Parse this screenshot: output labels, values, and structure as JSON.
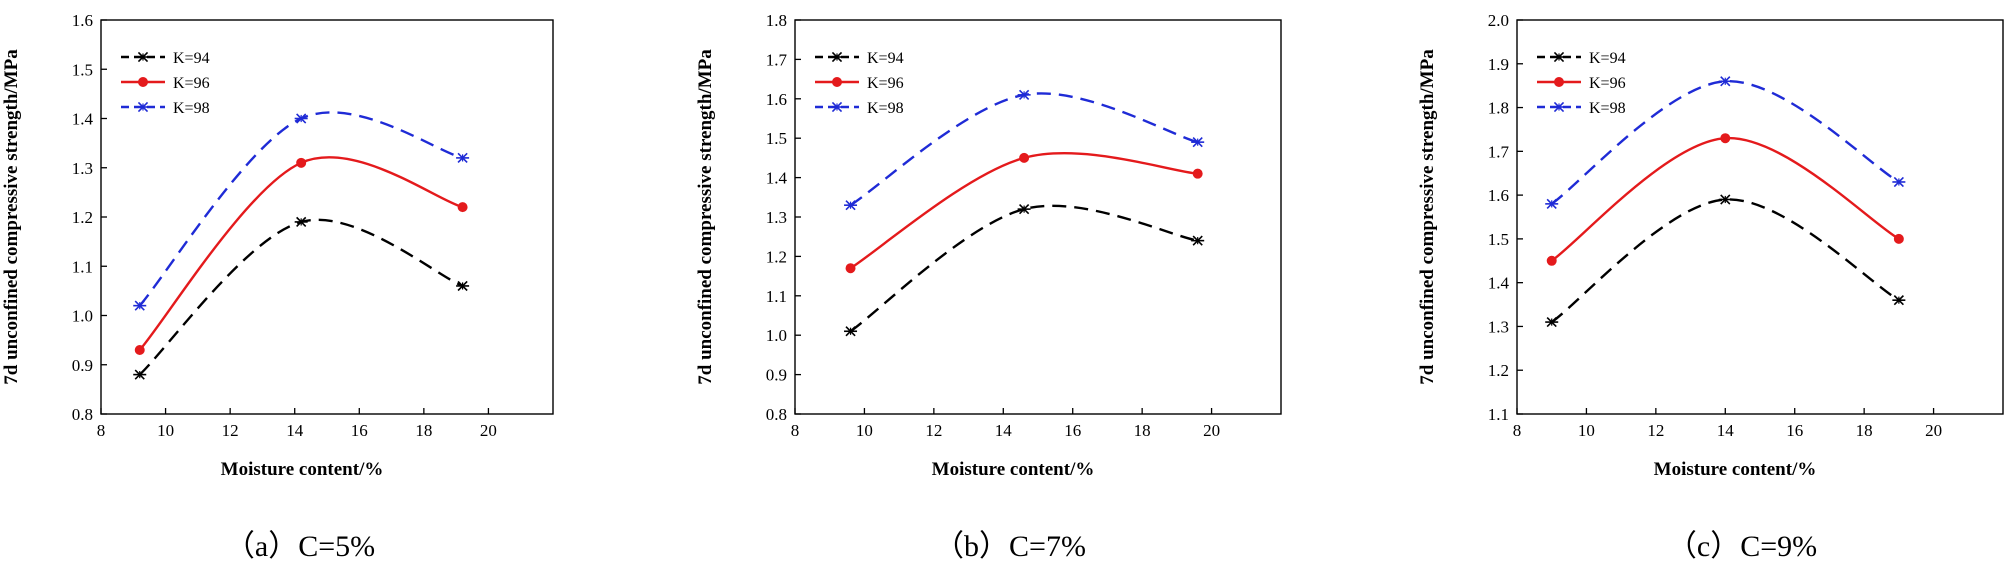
{
  "chart_data": [
    {
      "type": "line",
      "caption": "（a）C=5%",
      "xlabel": "Moisture content/%",
      "ylabel": "7d unconfined compressive strength/MPa",
      "xlim": [
        8,
        22
      ],
      "ylim": [
        0.8,
        1.6
      ],
      "xticks": [
        8,
        10,
        12,
        14,
        16,
        18,
        20
      ],
      "yticks": [
        0.8,
        0.9,
        1.0,
        1.1,
        1.2,
        1.3,
        1.4,
        1.5,
        1.6
      ],
      "x": [
        9.2,
        14.2,
        19.2
      ],
      "series": [
        {
          "name": "K=94",
          "values": [
            0.88,
            1.19,
            1.06
          ],
          "color": "#000000",
          "style": "dashed",
          "marker": "asterisk"
        },
        {
          "name": "K=96",
          "values": [
            0.93,
            1.31,
            1.22
          ],
          "color": "#e41a1c",
          "style": "solid",
          "marker": "circle"
        },
        {
          "name": "K=98",
          "values": [
            1.02,
            1.4,
            1.32
          ],
          "color": "#1f2bd6",
          "style": "dashed",
          "marker": "asterisk"
        }
      ],
      "legend": "top-left"
    },
    {
      "type": "line",
      "caption": "（b）C=7%",
      "xlabel": "Moisture content/%",
      "ylabel": "7d unconfined compressive strength/MPa",
      "xlim": [
        8,
        22
      ],
      "ylim": [
        0.8,
        1.8
      ],
      "xticks": [
        8,
        10,
        12,
        14,
        16,
        18,
        20
      ],
      "yticks": [
        0.8,
        0.9,
        1.0,
        1.1,
        1.2,
        1.3,
        1.4,
        1.5,
        1.6,
        1.7,
        1.8
      ],
      "x": [
        9.6,
        14.6,
        19.6
      ],
      "series": [
        {
          "name": "K=94",
          "values": [
            1.01,
            1.32,
            1.24
          ],
          "color": "#000000",
          "style": "dashed",
          "marker": "asterisk"
        },
        {
          "name": "K=96",
          "values": [
            1.17,
            1.45,
            1.41
          ],
          "color": "#e41a1c",
          "style": "solid",
          "marker": "circle"
        },
        {
          "name": "K=98",
          "values": [
            1.33,
            1.61,
            1.49
          ],
          "color": "#1f2bd6",
          "style": "dashed",
          "marker": "asterisk"
        }
      ],
      "legend": "top-left"
    },
    {
      "type": "line",
      "caption": "（c）C=9%",
      "xlabel": "Moisture content/%",
      "ylabel": "7d unconfined compressive strength/MPa",
      "xlim": [
        8,
        22
      ],
      "ylim": [
        1.1,
        2.0
      ],
      "xticks": [
        8,
        10,
        12,
        14,
        16,
        18,
        20
      ],
      "yticks": [
        1.1,
        1.2,
        1.3,
        1.4,
        1.5,
        1.6,
        1.7,
        1.8,
        1.9,
        2.0
      ],
      "x": [
        9.0,
        14.0,
        19.0
      ],
      "series": [
        {
          "name": "K=94",
          "values": [
            1.31,
            1.59,
            1.36
          ],
          "color": "#000000",
          "style": "dashed",
          "marker": "asterisk"
        },
        {
          "name": "K=96",
          "values": [
            1.45,
            1.73,
            1.5
          ],
          "color": "#e41a1c",
          "style": "solid",
          "marker": "circle"
        },
        {
          "name": "K=98",
          "values": [
            1.58,
            1.86,
            1.63
          ],
          "color": "#1f2bd6",
          "style": "dashed",
          "marker": "asterisk"
        }
      ],
      "legend": "top-left"
    }
  ]
}
